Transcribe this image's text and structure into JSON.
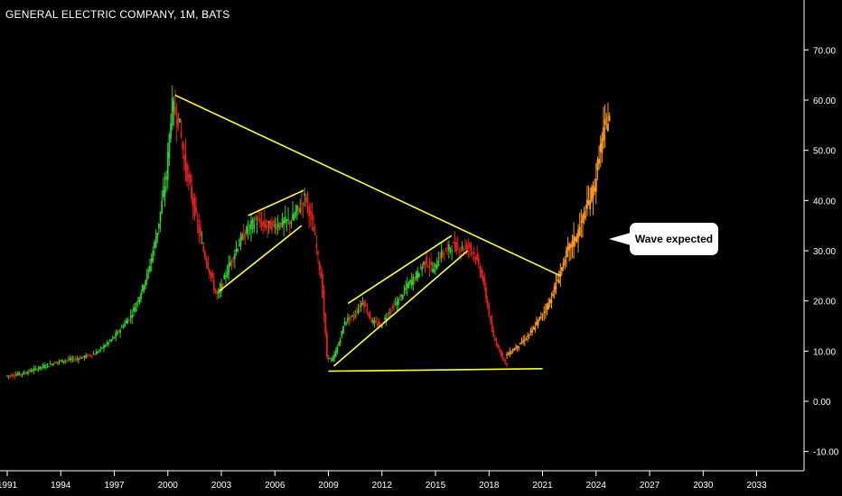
{
  "header": {
    "title": "GENERAL ELECTRIC COMPANY, 1M, BATS"
  },
  "annotation": {
    "text": "Wave expected"
  },
  "colors": {
    "up": "#2ecc2e",
    "down": "#e0201c",
    "projection": "#ff9a1a",
    "trendline": "#ffff33",
    "axis": "#ffffff"
  },
  "chart_data": {
    "type": "line",
    "title": "GENERAL ELECTRIC COMPANY, 1M, BATS",
    "xlabel": "",
    "ylabel": "",
    "x_ticks": [
      "1991",
      "1994",
      "1997",
      "2000",
      "2003",
      "2006",
      "2009",
      "2012",
      "2015",
      "2018",
      "2021",
      "2024",
      "2027",
      "2030",
      "2033"
    ],
    "y_ticks": [
      "70.00",
      "60.00",
      "50.00",
      "40.00",
      "30.00",
      "20.00",
      "10.00",
      "0.00",
      "-10.00"
    ],
    "y_tick_values": [
      70,
      60,
      50,
      40,
      30,
      20,
      10,
      0,
      -10
    ],
    "xlim": [
      1991,
      2035.5
    ],
    "ylim": [
      -13,
      80
    ],
    "series": [
      {
        "kind": "historical",
        "x": [
          1991,
          1992,
          1993,
          1994,
          1995,
          1996,
          1997,
          1998,
          1998.5,
          1999,
          1999.5,
          2000,
          2000.3,
          2000.7,
          2001,
          2001.3,
          2001.7,
          2002,
          2002.5,
          2002.8,
          2003,
          2003.5,
          2004,
          2004.5,
          2005,
          2005.5,
          2006,
          2006.5,
          2007,
          2007.5,
          2007.8,
          2008,
          2008.3,
          2008.7,
          2009,
          2009.3,
          2009.7,
          2010,
          2010.5,
          2011,
          2011.5,
          2012,
          2012.5,
          2013,
          2013.5,
          2014,
          2014.5,
          2015,
          2015.3,
          2015.7,
          2016,
          2016.5,
          2017,
          2017.3,
          2017.7,
          2018,
          2018.3,
          2018.7,
          2019
        ],
        "y": [
          5,
          5.6,
          6.8,
          8,
          8.5,
          9.5,
          12.5,
          17,
          21,
          26,
          34,
          45,
          59,
          56,
          48,
          43,
          36,
          31,
          25,
          21,
          22,
          27,
          31,
          34,
          36,
          35,
          35,
          35.5,
          36,
          39,
          41,
          38,
          33,
          24,
          9,
          8,
          12,
          16,
          17,
          20,
          16,
          15,
          18,
          20,
          23,
          25,
          28,
          26,
          29,
          30,
          31,
          30.5,
          31,
          29,
          25,
          19,
          13,
          10,
          7.5
        ]
      },
      {
        "kind": "projection",
        "x": [
          2019,
          2019.5,
          2020,
          2020.5,
          2021,
          2021.5,
          2022,
          2022.5,
          2023,
          2023.5,
          2024,
          2024.3,
          2024.6,
          2024.8
        ],
        "y": [
          9,
          10.5,
          12,
          14,
          17,
          20,
          25,
          30,
          33,
          38,
          43,
          50,
          55,
          57
        ]
      }
    ],
    "trendlines": [
      {
        "from": [
          2000.4,
          61
        ],
        "to": [
          2022,
          25
        ]
      },
      {
        "from": [
          2009,
          6
        ],
        "to": [
          2021,
          6.5
        ]
      },
      {
        "from": [
          2002.9,
          22
        ],
        "to": [
          2007.5,
          35
        ]
      },
      {
        "from": [
          2004.5,
          37
        ],
        "to": [
          2007.6,
          42
        ]
      },
      {
        "from": [
          2010.1,
          19.5
        ],
        "to": [
          2015.9,
          33
        ]
      },
      {
        "from": [
          2009.3,
          7
        ],
        "to": [
          2016.8,
          30
        ]
      }
    ],
    "grid": false,
    "legend": "none"
  }
}
